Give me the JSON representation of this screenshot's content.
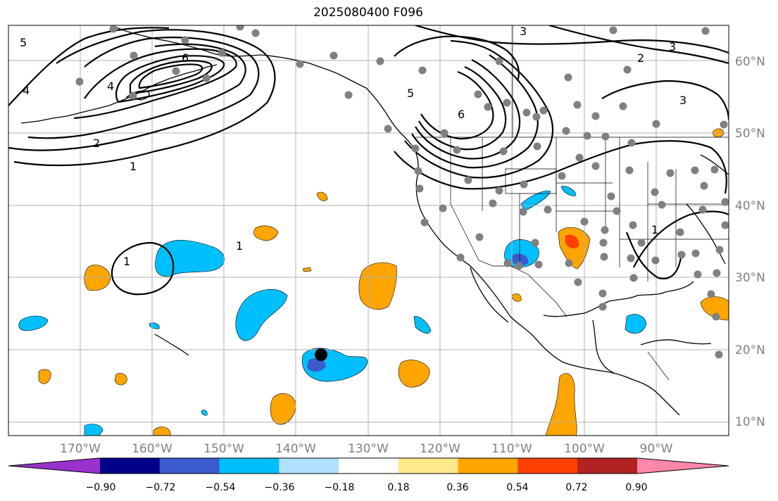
{
  "title": "2025080400 F096",
  "map": {
    "lat_labels": [
      "60°N",
      "50°N",
      "40°N",
      "30°N",
      "20°N",
      "10°N"
    ],
    "lon_labels": [
      "170°W",
      "160°W",
      "150°W",
      "140°W",
      "130°W",
      "120°W",
      "110°W",
      "100°W",
      "90°W"
    ],
    "contour_labels": [
      "5",
      "4",
      "6",
      "4",
      "2",
      "1",
      "3",
      "2",
      "3",
      "5",
      "6",
      "3",
      "1",
      "1",
      "1"
    ],
    "gridline_color": "#b0b0b0",
    "station_color": "#808080"
  },
  "colorbar": {
    "tick_labels": [
      "−0.90",
      "−0.72",
      "−0.54",
      "−0.36",
      "−0.18",
      "0.18",
      "0.36",
      "0.54",
      "0.72",
      "0.90"
    ],
    "colors": [
      "#9932cc",
      "#00008b",
      "#3a5bcd",
      "#00bfff",
      "#b0e0ff",
      "#ffffff",
      "#ffe98a",
      "#ffa500",
      "#ff4000",
      "#b22222",
      "#ff88aa"
    ]
  }
}
